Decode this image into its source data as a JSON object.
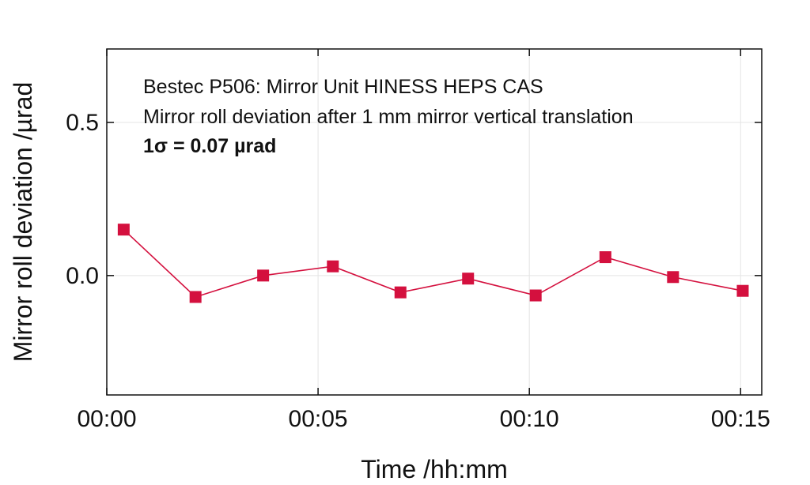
{
  "chart_data": {
    "type": "line",
    "annotations": [
      "Bestec P506: Mirror Unit HINESS HEPS CAS",
      "Mirror roll deviation after 1 mm mirror vertical translation",
      "1σ = 0.07 µrad"
    ],
    "xlabel": "Time /hh:mm",
    "ylabel": "Mirror roll deviation /µrad",
    "x_ticks": [
      {
        "value": 0,
        "label": "00:00"
      },
      {
        "value": 5,
        "label": "00:05"
      },
      {
        "value": 10,
        "label": "00:10"
      },
      {
        "value": 15,
        "label": "00:15"
      }
    ],
    "y_ticks": [
      {
        "value": 0.0,
        "label": "0.0"
      },
      {
        "value": 0.5,
        "label": "0.5"
      }
    ],
    "xlim": [
      0,
      15.5
    ],
    "ylim": [
      -0.39,
      0.74
    ],
    "grid": true,
    "series": [
      {
        "color": "#d4103e",
        "marker": "square",
        "points": [
          {
            "x": 0.4,
            "y": 0.15
          },
          {
            "x": 2.1,
            "y": -0.07
          },
          {
            "x": 3.7,
            "y": 0.0
          },
          {
            "x": 5.35,
            "y": 0.03
          },
          {
            "x": 6.95,
            "y": -0.055
          },
          {
            "x": 8.55,
            "y": -0.01
          },
          {
            "x": 10.15,
            "y": -0.065
          },
          {
            "x": 11.8,
            "y": 0.06
          },
          {
            "x": 13.4,
            "y": -0.005
          },
          {
            "x": 15.05,
            "y": -0.05
          }
        ]
      }
    ]
  }
}
